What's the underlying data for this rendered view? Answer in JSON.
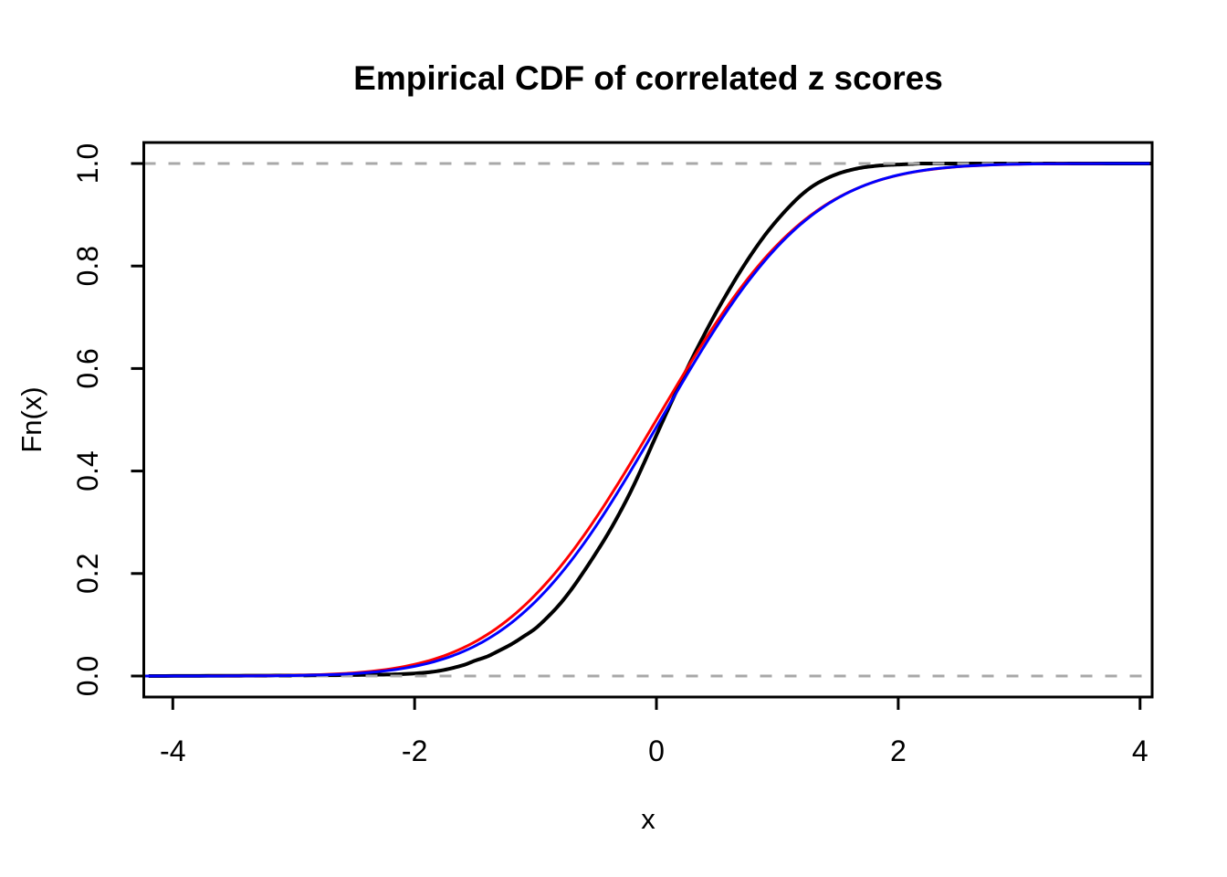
{
  "figure": {
    "title": "Empirical CDF of correlated z scores",
    "x_axis_label": "x",
    "y_axis_label": "Fn(x)"
  },
  "colors": {
    "background": "#FFFFFF",
    "axis": "#000000",
    "reference_dashed": "#A8A8A8",
    "empirical_curve": "#000000",
    "red_curve": "#FF0000",
    "blue_curve": "#0000FF"
  },
  "chart_data": {
    "type": "line",
    "title": "Empirical CDF of correlated z scores",
    "xlabel": "x",
    "ylabel": "Fn(x)",
    "xlim": [
      -4.24,
      4.1
    ],
    "ylim": [
      -0.041,
      1.041
    ],
    "grid": false,
    "legend": "none",
    "x_ticks": {
      "values": [
        -4,
        -2,
        0,
        2,
        4
      ],
      "labels": [
        "-4",
        "-2",
        "0",
        "2",
        "4"
      ]
    },
    "y_ticks": {
      "values": [
        0,
        0.2,
        0.4,
        0.6,
        0.8,
        1
      ],
      "labels": [
        "0.0",
        "0.2",
        "0.4",
        "0.6",
        "0.8",
        "1.0"
      ]
    },
    "reference_lines": [
      {
        "axis": "y",
        "value": 0,
        "style": "dashed",
        "color": "#A8A8A8"
      },
      {
        "axis": "y",
        "value": 1,
        "style": "dashed",
        "color": "#A8A8A8"
      }
    ],
    "series": [
      {
        "name": "empirical-cdf-correlated-z",
        "color": "#000000",
        "line_style": "solid",
        "curve": "empirical",
        "points": [
          [
            -4.2,
            0.0
          ],
          [
            -3.5,
            0.0005
          ],
          [
            -3.0,
            0.001
          ],
          [
            -2.5,
            0.002
          ],
          [
            -2.2,
            0.003
          ],
          [
            -2.0,
            0.005
          ],
          [
            -1.8,
            0.01
          ],
          [
            -1.6,
            0.021
          ],
          [
            -1.5,
            0.03
          ],
          [
            -1.4,
            0.038
          ],
          [
            -1.33,
            0.046
          ],
          [
            -1.2,
            0.062
          ],
          [
            -1.1,
            0.077
          ],
          [
            -1.0,
            0.093
          ],
          [
            -0.9,
            0.115
          ],
          [
            -0.8,
            0.14
          ],
          [
            -0.7,
            0.17
          ],
          [
            -0.6,
            0.204
          ],
          [
            -0.5,
            0.24
          ],
          [
            -0.4,
            0.278
          ],
          [
            -0.3,
            0.32
          ],
          [
            -0.2,
            0.366
          ],
          [
            -0.1,
            0.417
          ],
          [
            0.0,
            0.47
          ],
          [
            0.1,
            0.522
          ],
          [
            0.2,
            0.573
          ],
          [
            0.3,
            0.622
          ],
          [
            0.4,
            0.668
          ],
          [
            0.5,
            0.712
          ],
          [
            0.6,
            0.753
          ],
          [
            0.7,
            0.792
          ],
          [
            0.8,
            0.828
          ],
          [
            0.9,
            0.861
          ],
          [
            1.0,
            0.89
          ],
          [
            1.1,
            0.916
          ],
          [
            1.2,
            0.939
          ],
          [
            1.3,
            0.957
          ],
          [
            1.4,
            0.97
          ],
          [
            1.5,
            0.98
          ],
          [
            1.6,
            0.987
          ],
          [
            1.7,
            0.992
          ],
          [
            1.8,
            0.995
          ],
          [
            1.9,
            0.997
          ],
          [
            2.0,
            0.998
          ],
          [
            2.1,
            0.999
          ],
          [
            2.2,
            1.0
          ],
          [
            2.6,
            1.0
          ],
          [
            4.1,
            1.0
          ]
        ]
      },
      {
        "name": "normal-cdf-red",
        "color": "#FF0000",
        "line_style": "solid",
        "curve": "normal_cdf",
        "mean": 0,
        "sd": 1,
        "sampled_points": [
          [
            -4.0,
            3e-05
          ],
          [
            -3.5,
            0.0002
          ],
          [
            -3.0,
            0.0013
          ],
          [
            -2.5,
            0.0062
          ],
          [
            -2.0,
            0.0228
          ],
          [
            -1.5,
            0.0668
          ],
          [
            -1.0,
            0.1587
          ],
          [
            -0.5,
            0.3085
          ],
          [
            0.0,
            0.5
          ],
          [
            0.5,
            0.6915
          ],
          [
            1.0,
            0.8413
          ],
          [
            1.5,
            0.9332
          ],
          [
            2.0,
            0.9772
          ],
          [
            2.5,
            0.9938
          ],
          [
            3.0,
            0.9987
          ],
          [
            3.5,
            0.9998
          ],
          [
            4.0,
            0.99997
          ]
        ]
      },
      {
        "name": "normal-cdf-blue",
        "color": "#0000FF",
        "line_style": "solid",
        "curve": "normal_cdf",
        "mean": 0.035,
        "sd": 0.98,
        "sampled_points": [
          [
            -4.0,
            2e-05
          ],
          [
            -3.5,
            0.00015
          ],
          [
            -3.0,
            0.001
          ],
          [
            -2.5,
            0.0048
          ],
          [
            -2.0,
            0.0189
          ],
          [
            -1.5,
            0.0586
          ],
          [
            -1.0,
            0.1455
          ],
          [
            -0.5,
            0.2925
          ],
          [
            0.0,
            0.4858
          ],
          [
            0.5,
            0.6823
          ],
          [
            1.0,
            0.8377
          ],
          [
            1.5,
            0.9326
          ],
          [
            2.0,
            0.9775
          ],
          [
            2.5,
            0.9941
          ],
          [
            3.0,
            0.9988
          ],
          [
            3.5,
            0.9998
          ],
          [
            4.0,
            0.99997
          ]
        ]
      }
    ]
  }
}
